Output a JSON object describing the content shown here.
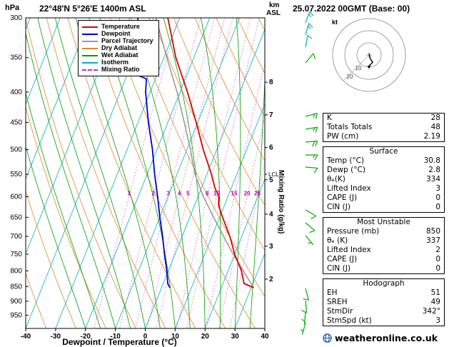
{
  "labels": {
    "hpa": "hPa",
    "station": "22°48'N 5°26'E 1400m ASL",
    "km": "km",
    "asl": "ASL",
    "datetime": "25.07.2022 00GMT (Base: 00)",
    "xaxis": "Dewpoint / Temperature (°C)",
    "mixing_axis": "Mixing Ratio (g/kg)",
    "lcl": "LCL"
  },
  "legend": {
    "items": [
      {
        "key": "temperature",
        "label": "Temperature",
        "color": "#dd0000",
        "dash": false
      },
      {
        "key": "dewpoint",
        "label": "Dewpoint",
        "color": "#0000cc",
        "dash": false
      },
      {
        "key": "parcel-trajectory",
        "label": "Parcel Trajectory",
        "color": "#9a9a9a",
        "dash": false
      },
      {
        "key": "dry-adiabat",
        "label": "Dry Adiabat",
        "color": "#d98b27",
        "dash": false
      },
      {
        "key": "wet-adiabat",
        "label": "Wet Adiabat",
        "color": "#009900",
        "dash": false
      },
      {
        "key": "isotherm",
        "label": "Isotherm",
        "color": "#00b2b2",
        "dash": false
      },
      {
        "key": "mixing-ratio",
        "label": "Mixing Ratio",
        "color": "#bb33bb",
        "dash": true
      }
    ]
  },
  "chart_data": {
    "type": "skewt-logp-sounding",
    "pressure_ticks_hpa": [
      300,
      350,
      400,
      450,
      500,
      550,
      600,
      650,
      700,
      750,
      800,
      850,
      900,
      950
    ],
    "temp_ticks_c": [
      -40,
      -30,
      -20,
      -10,
      0,
      10,
      20,
      30,
      40
    ],
    "km_ticks": [
      {
        "km": 8,
        "p": 385
      },
      {
        "km": 7,
        "p": 437
      },
      {
        "km": 6,
        "p": 496
      },
      {
        "km": 5,
        "p": 562
      },
      {
        "km": 4,
        "p": 642
      },
      {
        "km": 3,
        "p": 727
      },
      {
        "km": 2,
        "p": 826
      }
    ],
    "lcl_pressure_hpa": 550,
    "series": [
      {
        "name": "Parcel Trajectory",
        "color": "#9a9a9a",
        "width": 1.6,
        "points": [
          [
            854,
            30.8
          ],
          [
            800,
            25.1
          ],
          [
            750,
            19.5
          ],
          [
            700,
            13.9
          ],
          [
            650,
            8.0
          ],
          [
            600,
            1.8
          ],
          [
            550,
            -4.0
          ],
          [
            500,
            -8.8
          ],
          [
            450,
            -14.5
          ],
          [
            400,
            -21.0
          ],
          [
            350,
            -29.0
          ],
          [
            300,
            -38.0
          ]
        ]
      },
      {
        "name": "Dewpoint",
        "color": "#0000cc",
        "width": 1.8,
        "points": [
          [
            854,
            2.8
          ],
          [
            840,
            1.5
          ],
          [
            800,
            -0.5
          ],
          [
            750,
            -3.5
          ],
          [
            700,
            -6.5
          ],
          [
            650,
            -10.0
          ],
          [
            600,
            -13.5
          ],
          [
            550,
            -17.5
          ],
          [
            500,
            -21.5
          ],
          [
            450,
            -26.5
          ],
          [
            400,
            -31.5
          ],
          [
            380,
            -33.0
          ],
          [
            350,
            -53.0
          ],
          [
            345,
            -40.0
          ],
          [
            300,
            -44.0
          ]
        ]
      },
      {
        "name": "Temperature",
        "color": "#dd0000",
        "width": 1.8,
        "points": [
          [
            854,
            30.8
          ],
          [
            840,
            27.0
          ],
          [
            800,
            24.5
          ],
          [
            750,
            20.0
          ],
          [
            700,
            16.0
          ],
          [
            650,
            11.0
          ],
          [
            620,
            8.0
          ],
          [
            600,
            7.0
          ],
          [
            580,
            4.5
          ],
          [
            550,
            1.5
          ],
          [
            500,
            -4.5
          ],
          [
            450,
            -10.5
          ],
          [
            400,
            -17.5
          ],
          [
            350,
            -26.0
          ],
          [
            300,
            -34.0
          ]
        ]
      }
    ],
    "background": {
      "isotherm": {
        "color": "#00b2b2",
        "step_c": 10
      },
      "dry_adiabat": {
        "color": "#d98b27",
        "theta_from_k": 230,
        "theta_to_k": 400,
        "step_k": 10
      },
      "wet_adiabat": {
        "color": "#009900",
        "start_temps_c": [
          -20,
          -15,
          -10,
          -5,
          0,
          5,
          10,
          15,
          20,
          25,
          30,
          35,
          40
        ]
      },
      "mixing_ratio": {
        "color": "#c957c9",
        "label_color": "#b300b3",
        "values_g_kg": [
          1,
          2,
          3,
          4,
          5,
          8,
          10,
          15,
          20,
          25
        ],
        "label_pressure_hpa": 600
      }
    }
  },
  "wind_barbs": {
    "items": [
      {
        "y": 32,
        "dir_deg": 20,
        "speed_kt": 15,
        "color": "#00b0b0"
      },
      {
        "y": 49,
        "dir_deg": 15,
        "speed_kt": 15,
        "color": "#00b0b0"
      },
      {
        "y": 66,
        "dir_deg": 10,
        "speed_kt": 10,
        "color": "#00b0b0"
      },
      {
        "y": 88,
        "dir_deg": 40,
        "speed_kt": 10,
        "color": "#00aa00"
      },
      {
        "y": 163,
        "dir_deg": 75,
        "speed_kt": 15,
        "color": "#00aa00"
      },
      {
        "y": 181,
        "dir_deg": 80,
        "speed_kt": 15,
        "color": "#00aa00"
      },
      {
        "y": 199,
        "dir_deg": 85,
        "speed_kt": 20,
        "color": "#00aa00"
      },
      {
        "y": 217,
        "dir_deg": 90,
        "speed_kt": 15,
        "color": "#00aa00"
      },
      {
        "y": 234,
        "dir_deg": 95,
        "speed_kt": 10,
        "color": "#00aa00"
      },
      {
        "y": 294,
        "dir_deg": 120,
        "speed_kt": 10,
        "color": "#00aa00"
      },
      {
        "y": 312,
        "dir_deg": 130,
        "speed_kt": 10,
        "color": "#00aa00"
      },
      {
        "y": 330,
        "dir_deg": 140,
        "speed_kt": 5,
        "color": "#00aa00"
      },
      {
        "y": 404,
        "dir_deg": 165,
        "speed_kt": 10,
        "color": "#00aa00"
      },
      {
        "y": 421,
        "dir_deg": 175,
        "speed_kt": 10,
        "color": "#00aa00"
      },
      {
        "y": 437,
        "dir_deg": 185,
        "speed_kt": 5,
        "color": "#00aa00"
      },
      {
        "y": 452,
        "dir_deg": 195,
        "speed_kt": 5,
        "color": "#00aa00"
      }
    ]
  },
  "hodograph": {
    "unit_label": "kt",
    "rings_kt": [
      10,
      20,
      30
    ],
    "ring_labels": [
      "10",
      "20"
    ],
    "trace_uv_kt": [
      [
        0,
        -1
      ],
      [
        1,
        3
      ],
      [
        3,
        6
      ],
      [
        0,
        9
      ]
    ],
    "storm_dir_deg": 342,
    "storm_speed_kt": 3
  },
  "tables": {
    "sections": [
      {
        "title": null,
        "rows": [
          [
            "K",
            "28"
          ],
          [
            "Totals Totals",
            "48"
          ],
          [
            "PW (cm)",
            "2.19"
          ]
        ]
      },
      {
        "title": "Surface",
        "rows": [
          [
            "Temp (°C)",
            "30.8"
          ],
          [
            "Dewp (°C)",
            "2.8"
          ],
          [
            "θₑ(K)",
            "334"
          ],
          [
            "Lifted Index",
            "3"
          ],
          [
            "CAPE (J)",
            "0"
          ],
          [
            "CIN (J)",
            "0"
          ]
        ]
      },
      {
        "title": "Most Unstable",
        "rows": [
          [
            "Pressure (mb)",
            "850"
          ],
          [
            "θₑ (K)",
            "337"
          ],
          [
            "Lifted Index",
            "2"
          ],
          [
            "CAPE (J)",
            "0"
          ],
          [
            "CIN (J)",
            "0"
          ]
        ]
      },
      {
        "title": "Hodograph",
        "rows": [
          [
            "EH",
            "51"
          ],
          [
            "SREH",
            "49"
          ],
          [
            "StmDir",
            "342°"
          ],
          [
            "StmSpd (kt)",
            "3"
          ]
        ]
      }
    ]
  },
  "footer": {
    "site": "weatheronline.co.uk"
  }
}
